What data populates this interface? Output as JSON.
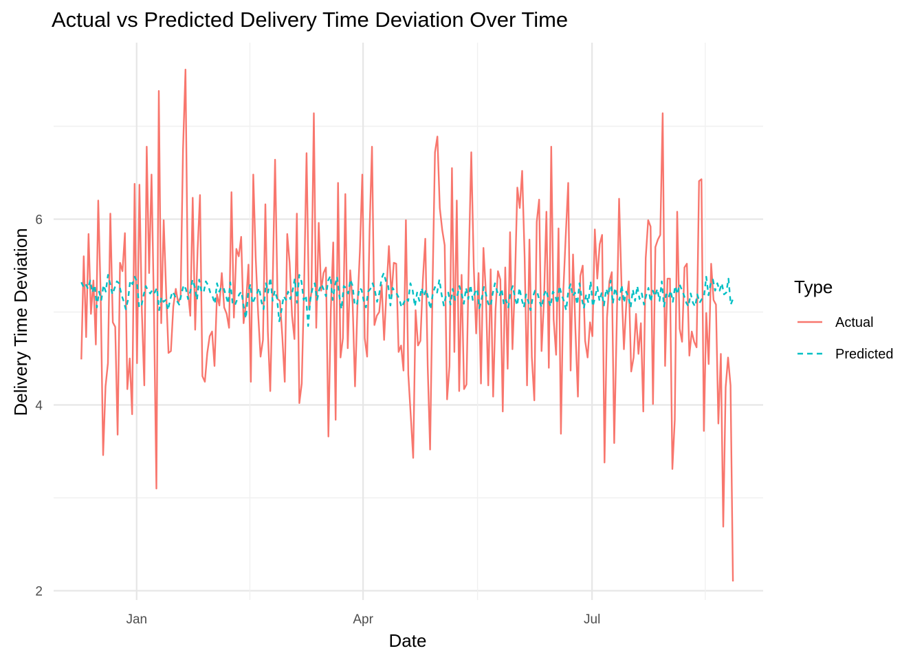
{
  "chart_data": {
    "type": "line",
    "title": "Actual vs Predicted Delivery Time Deviation Over Time",
    "xlabel": "Date",
    "ylabel": "Delivery Time Deviation",
    "x_ticks": [
      "2023-01-01",
      "2023-04-01",
      "2023-07-01"
    ],
    "x_tick_labels": [
      "Jan",
      "Apr",
      "Jul"
    ],
    "y_ticks": [
      2,
      4,
      6
    ],
    "xlim": [
      "2022-11-29",
      "2023-09-07"
    ],
    "ylim": [
      1.9,
      7.9
    ],
    "x_range": [
      "2022-12-10",
      "2023-08-26"
    ],
    "grid": true,
    "legend": {
      "title": "Type",
      "position": "right"
    },
    "series": [
      {
        "name": "Actual",
        "color": "#F8766D",
        "style": "solid",
        "values": [
          4.49,
          5.6,
          4.73,
          5.84,
          4.98,
          5.34,
          4.65,
          6.2,
          5.2,
          3.46,
          4.2,
          4.45,
          6.06,
          4.89,
          4.84,
          3.68,
          5.53,
          5.44,
          5.85,
          4.17,
          4.5,
          3.9,
          6.38,
          4.45,
          6.37,
          5.02,
          4.21,
          6.78,
          5.42,
          6.48,
          5.0,
          3.1,
          7.38,
          4.88,
          5.99,
          5.23,
          4.56,
          4.58,
          5.06,
          5.25,
          5.1,
          5.16,
          6.75,
          7.61,
          5.23,
          4.96,
          6.23,
          4.81,
          5.67,
          6.26,
          4.31,
          4.25,
          4.56,
          4.74,
          4.79,
          4.42,
          5.19,
          5.07,
          5.42,
          5.05,
          4.98,
          4.83,
          6.29,
          4.94,
          5.68,
          5.6,
          5.81,
          4.88,
          5.1,
          5.51,
          4.25,
          6.48,
          5.59,
          4.98,
          4.52,
          4.7,
          6.16,
          4.79,
          4.15,
          5.29,
          6.64,
          5.14,
          5.12,
          4.73,
          4.25,
          5.84,
          5.53,
          4.96,
          4.71,
          6.06,
          4.02,
          4.23,
          5.3,
          6.71,
          5.03,
          5.22,
          7.14,
          4.83,
          5.96,
          5.23,
          5.42,
          5.48,
          3.66,
          5.02,
          5.75,
          3.84,
          6.39,
          4.51,
          4.72,
          6.27,
          4.61,
          5.45,
          5.1,
          4.2,
          5.06,
          5.66,
          6.48,
          4.72,
          4.52,
          5.89,
          6.78,
          4.86,
          4.96,
          5.0,
          5.29,
          4.7,
          5.24,
          5.71,
          5.17,
          5.53,
          5.52,
          4.57,
          4.64,
          4.37,
          5.99,
          4.33,
          3.88,
          3.43,
          5.02,
          4.64,
          4.69,
          5.35,
          5.79,
          4.42,
          3.52,
          5.29,
          6.72,
          6.89,
          6.12,
          5.88,
          5.72,
          4.06,
          4.42,
          6.55,
          4.57,
          6.2,
          4.15,
          5.4,
          4.17,
          4.22,
          5.59,
          6.72,
          5.49,
          4.77,
          5.42,
          4.23,
          5.69,
          5.22,
          4.21,
          5.46,
          4.09,
          5.03,
          5.44,
          5.35,
          3.93,
          5.48,
          4.39,
          5.86,
          4.6,
          5.32,
          6.34,
          6.12,
          6.52,
          5.59,
          4.21,
          5.78,
          4.51,
          4.05,
          5.97,
          6.21,
          4.58,
          5.12,
          6.08,
          4.4,
          6.78,
          4.92,
          4.54,
          5.9,
          3.69,
          5.23,
          5.84,
          6.39,
          4.37,
          5.62,
          4.78,
          4.09,
          5.39,
          5.5,
          4.69,
          4.51,
          4.89,
          4.74,
          5.89,
          5.36,
          5.73,
          5.83,
          3.38,
          4.94,
          5.33,
          5.43,
          3.59,
          4.85,
          6.22,
          5.3,
          4.6,
          5.09,
          5.33,
          4.36,
          4.51,
          4.98,
          4.55,
          4.88,
          3.93,
          5.58,
          5.99,
          5.92,
          4.01,
          5.7,
          5.78,
          5.83,
          7.14,
          4.42,
          5.36,
          5.36,
          3.31,
          3.84,
          6.08,
          4.82,
          4.68,
          5.48,
          5.52,
          4.53,
          4.79,
          4.68,
          4.62,
          6.41,
          6.43,
          3.72,
          4.99,
          4.44,
          5.52,
          5.13,
          5.08,
          3.8,
          4.55,
          2.69,
          4.19,
          4.51,
          4.21,
          2.1
        ]
      },
      {
        "name": "Predicted",
        "color": "#00BFC4",
        "style": "dashed",
        "values": [
          5.32,
          5.27,
          5.3,
          5.25,
          5.34,
          5.21,
          5.29,
          5.05,
          5.22,
          5.13,
          5.29,
          5.22,
          5.4,
          5.3,
          5.19,
          5.26,
          5.33,
          5.31,
          5.19,
          5.12,
          5.03,
          5.13,
          5.34,
          5.3,
          5.38,
          5.33,
          5.05,
          5.06,
          5.18,
          5.28,
          5.23,
          5.2,
          5.24,
          5.21,
          5.26,
          5.02,
          5.16,
          5.11,
          5.13,
          5.02,
          5.14,
          5.22,
          5.18,
          5.12,
          5.08,
          5.19,
          5.29,
          5.25,
          5.14,
          5.22,
          5.35,
          5.27,
          5.13,
          5.35,
          5.22,
          5.21,
          5.33,
          5.29,
          5.21,
          5.17,
          5.09,
          5.31,
          5.22,
          5.27,
          5.26,
          5.18,
          5.09,
          5.32,
          5.1,
          5.07,
          5.13,
          5.19,
          5.22,
          5.06,
          4.93,
          5.2,
          5.3,
          5.09,
          5.15,
          5.2,
          5.26,
          5.11,
          5.03,
          5.31,
          5.21,
          5.37,
          5.12,
          5.23,
          5.15,
          4.9,
          5.02,
          5.17,
          5.13,
          5.22,
          5.14,
          5.23,
          5.36,
          5.1,
          5.4,
          5.33,
          5.13,
          5.18,
          4.85,
          5.14,
          5.26,
          5.31,
          5.13,
          5.24,
          5.3,
          5.24,
          5.17,
          5.34,
          5.39,
          5.13,
          5.28,
          5.38,
          5.18,
          5.03,
          5.28,
          5.26,
          5.2,
          5.35,
          5.28,
          5.07,
          5.09,
          5.26,
          5.24,
          5.12,
          5.05,
          5.22,
          5.25,
          5.31,
          5.23,
          5.11,
          5.2,
          5.36,
          5.42,
          5.33,
          5.28,
          5.07,
          5.26,
          5.22,
          5.19,
          5.14,
          5.05,
          5.1,
          5.15,
          5.12,
          5.31,
          5.23,
          5.06,
          5.21,
          5.12,
          5.26,
          5.17,
          5.24,
          5.15,
          5.03,
          5.19,
          5.27,
          5.21,
          5.35,
          5.19,
          5.07,
          5.18,
          5.21,
          5.08,
          5.25,
          5.13,
          5.17,
          5.28,
          5.2,
          5.09,
          5.26,
          5.14,
          5.29,
          5.13,
          5.21,
          5.25,
          5.04,
          5.14,
          5.27,
          5.19,
          5.09,
          5.06,
          5.2,
          5.31,
          5.22,
          5.17,
          5.25,
          5.08,
          5.13,
          5.05,
          5.22,
          5.28,
          5.15,
          5.07,
          5.26,
          5.14,
          5.05,
          5.19,
          5.11,
          5.02,
          5.16,
          5.23,
          5.22,
          5.12,
          5.05,
          5.18,
          5.24,
          5.14,
          5.06,
          5.22,
          5.19,
          5.09,
          5.28,
          5.18,
          5.12,
          5.02,
          5.23,
          5.3,
          5.17,
          5.21,
          5.08,
          5.31,
          5.15,
          5.04,
          5.19,
          5.1,
          5.33,
          5.06,
          5.16,
          5.27,
          5.12,
          5.21,
          5.07,
          5.25,
          5.18,
          5.34,
          5.09,
          5.26,
          5.17,
          5.13,
          5.29,
          5.1,
          5.22,
          5.16,
          5.05,
          5.24,
          5.12,
          5.28,
          5.14,
          5.2,
          5.08,
          5.18,
          5.26,
          5.11,
          5.23,
          5.17,
          5.25,
          5.12,
          5.33,
          5.06,
          5.19,
          5.15,
          5.23,
          5.11,
          5.28,
          5.19,
          5.3,
          5.24,
          5.18,
          5.1,
          5.06,
          5.2,
          5.1,
          5.06,
          5.19,
          5.1,
          5.14,
          5.17,
          5.38,
          5.18,
          5.31,
          5.35,
          5.23,
          5.31,
          5.23,
          5.31,
          5.19,
          5.21,
          5.36,
          5.08,
          5.14
        ]
      }
    ]
  }
}
